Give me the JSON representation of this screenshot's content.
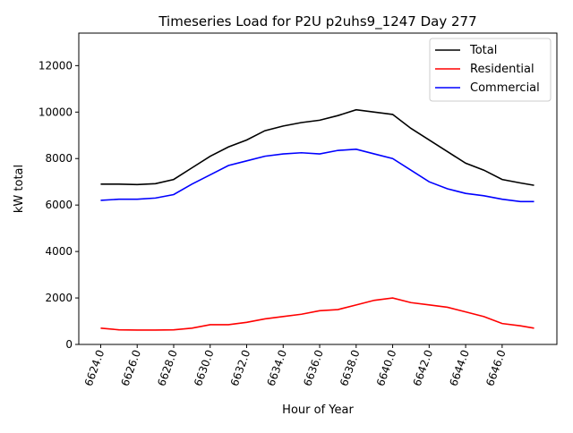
{
  "chart_data": {
    "type": "line",
    "title": "Timeseries Load for P2U p2uhs9_1247  Day 277",
    "xlabel": "Hour of Year",
    "ylabel": "kW total",
    "xlim": [
      6622.8,
      6649
    ],
    "ylim": [
      0,
      13400
    ],
    "xticks": [
      6624,
      6626,
      6628,
      6630,
      6632,
      6634,
      6636,
      6638,
      6640,
      6642,
      6644,
      6646
    ],
    "xtick_labels": [
      "6624.0",
      "6626.0",
      "6628.0",
      "6630.0",
      "6632.0",
      "6634.0",
      "6636.0",
      "6638.0",
      "6640.0",
      "6642.0",
      "6644.0",
      "6646.0"
    ],
    "yticks": [
      0,
      2000,
      4000,
      6000,
      8000,
      10000,
      12000
    ],
    "ytick_labels": [
      "0",
      "2000",
      "4000",
      "6000",
      "8000",
      "10000",
      "12000"
    ],
    "legend_position": "top-right",
    "grid": false,
    "x": [
      6624,
      6625,
      6626,
      6627,
      6628,
      6629,
      6630,
      6631,
      6632,
      6633,
      6634,
      6635,
      6636,
      6637,
      6638,
      6639,
      6640,
      6641,
      6642,
      6643,
      6644,
      6645,
      6646,
      6647,
      6647.75
    ],
    "series": [
      {
        "name": "Total",
        "color": "#000000",
        "values": [
          6900,
          6900,
          6880,
          6920,
          7100,
          7600,
          8100,
          8500,
          8800,
          9200,
          9400,
          9550,
          9650,
          9850,
          10100,
          10000,
          9900,
          9300,
          8800,
          8300,
          7800,
          7500,
          7100,
          6950,
          6850
        ]
      },
      {
        "name": "Residential",
        "color": "#ff0000",
        "values": [
          700,
          630,
          620,
          620,
          630,
          700,
          850,
          850,
          950,
          1100,
          1200,
          1300,
          1450,
          1500,
          1700,
          1900,
          2000,
          1800,
          1700,
          1600,
          1400,
          1200,
          900,
          800,
          700
        ]
      },
      {
        "name": "Commercial",
        "color": "#0000ff",
        "values": [
          6200,
          6250,
          6250,
          6300,
          6450,
          6900,
          7300,
          7700,
          7900,
          8100,
          8200,
          8250,
          8200,
          8350,
          8400,
          8200,
          8000,
          7500,
          7000,
          6700,
          6500,
          6400,
          6250,
          6150,
          6150
        ]
      }
    ]
  }
}
